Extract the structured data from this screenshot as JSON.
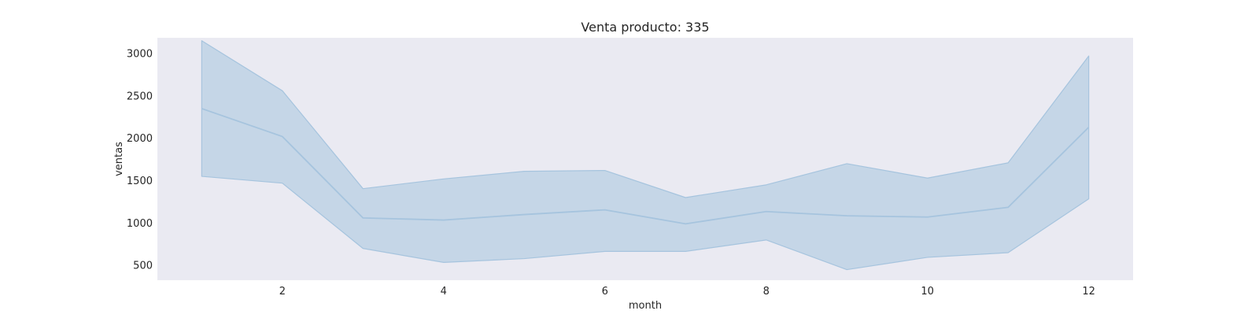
{
  "chart_data": {
    "type": "line",
    "title": "Venta producto: 335",
    "xlabel": "month",
    "ylabel": "ventas",
    "xlim": [
      0.45,
      12.55
    ],
    "ylim": [
      325,
      3185
    ],
    "xticks": [
      2,
      4,
      6,
      8,
      10,
      12
    ],
    "yticks": [
      500,
      1000,
      1500,
      2000,
      2500,
      3000
    ],
    "grid": false,
    "series": [
      {
        "x": [
          1,
          2,
          3,
          4,
          5,
          6,
          7,
          8,
          9,
          10,
          11,
          12
        ],
        "values": [
          2350,
          2020,
          1060,
          1035,
          1100,
          1155,
          990,
          1135,
          1085,
          1070,
          1185,
          2130
        ],
        "lower": [
          1550,
          1470,
          700,
          535,
          580,
          665,
          665,
          800,
          450,
          595,
          650,
          1285
        ],
        "upper": [
          3150,
          2560,
          1405,
          1520,
          1610,
          1620,
          1300,
          1450,
          1700,
          1530,
          1710,
          2970
        ]
      }
    ],
    "colors": {
      "plot_background": "#eaeaf2",
      "line": "#a6c4de",
      "band_fill": "#a6c4de",
      "band_edge": "#a6c4de"
    }
  }
}
